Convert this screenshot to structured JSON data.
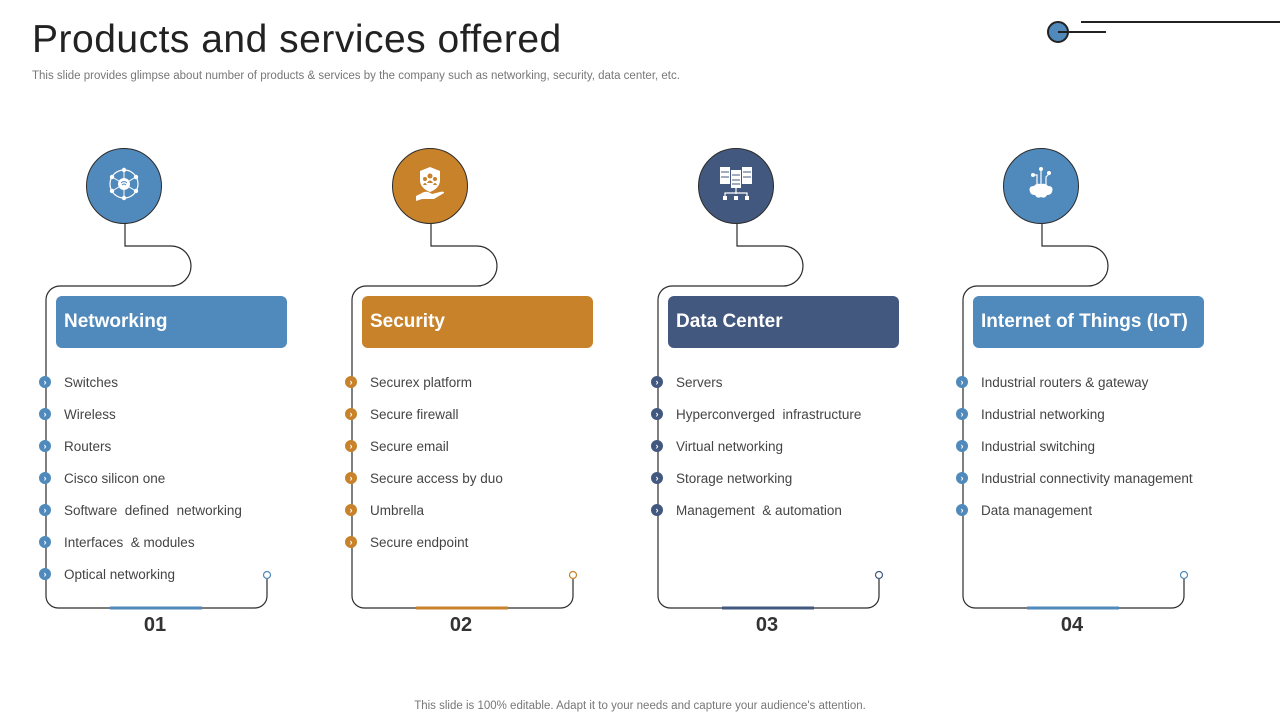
{
  "title": "Products and services offered",
  "subtitle": "This slide provides glimpse about number of products & services by the company such as networking, security, data center, etc.",
  "footer": "This slide is 100% editable. Adapt it to your needs and capture your audience's attention.",
  "colors": {
    "blue": "#5089bb",
    "orange": "#c8822a",
    "navy": "#43587f",
    "line": "#2b2b2b"
  },
  "cards": [
    {
      "number": "01",
      "title": "Networking",
      "color": "#5089bb",
      "icon": "network-hub-icon",
      "items": [
        "Switches",
        "Wireless",
        "Routers",
        "Cisco silicon one",
        "Software  defined  networking",
        "Interfaces  & modules",
        "Optical networking"
      ]
    },
    {
      "number": "02",
      "title": "Security",
      "color": "#c8822a",
      "icon": "security-shield-hand-icon",
      "items": [
        "Securex platform",
        "Secure firewall",
        "Secure email",
        "Secure access by duo",
        "Umbrella",
        "Secure endpoint"
      ]
    },
    {
      "number": "03",
      "title": "Data Center",
      "color": "#43587f",
      "icon": "server-rack-icon",
      "items": [
        "Servers",
        "Hyperconverged  infrastructure",
        "Virtual networking",
        "Storage networking",
        "Management  & automation"
      ]
    },
    {
      "number": "04",
      "title": "Internet of Things (IoT)",
      "color": "#5089bb",
      "icon": "iot-cloud-icon",
      "items": [
        "Industrial routers & gateway",
        "Industrial networking",
        "Industrial switching",
        "Industrial connectivity management",
        "Data management"
      ]
    }
  ]
}
